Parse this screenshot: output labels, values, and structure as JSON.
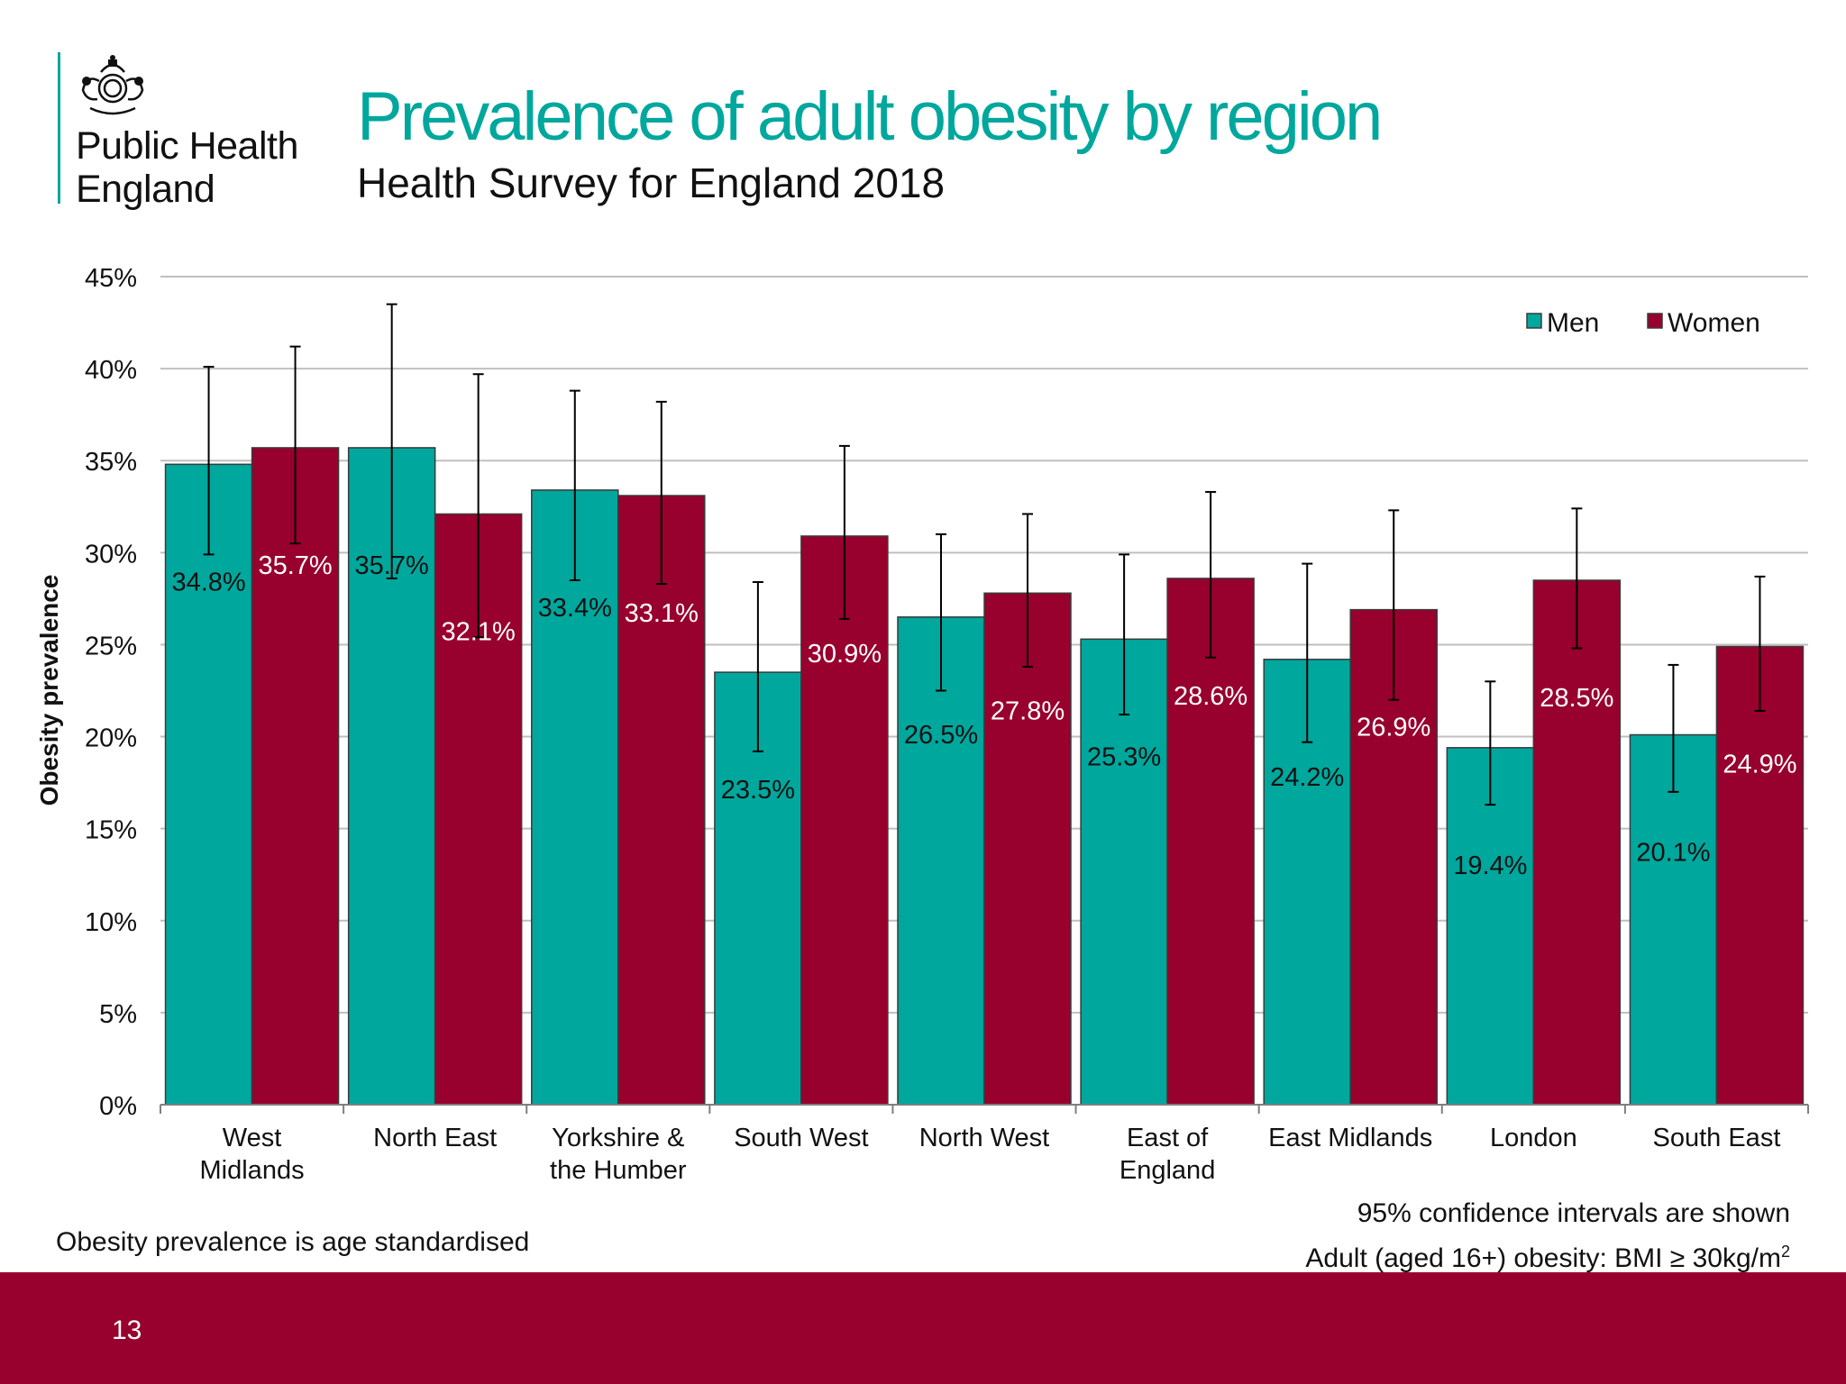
{
  "logo": {
    "line1": "Public Health",
    "line2": "England"
  },
  "title": "Prevalence of adult obesity by region",
  "subtitle": "Health Survey for England 2018",
  "footnotes": {
    "left": "Obesity prevalence is age standardised",
    "ci": "95% confidence intervals are shown",
    "bmi": "Adult (aged 16+) obesity: BMI ≥ 30kg/m",
    "bmi_sup": "2"
  },
  "page_number": "13",
  "colors": {
    "men": "#00a79d",
    "women": "#98002e",
    "accent": "#00a79d",
    "footer": "#98002e"
  },
  "chart_data": {
    "type": "bar",
    "ylabel": "Obesity prevalence",
    "xlabel": "",
    "ylim": [
      0,
      45
    ],
    "yticks": [
      "0%",
      "5%",
      "10%",
      "15%",
      "20%",
      "25%",
      "30%",
      "35%",
      "40%",
      "45%"
    ],
    "grid": true,
    "legend_position": "top-right",
    "categories": [
      [
        "West",
        "Midlands"
      ],
      [
        "North East"
      ],
      [
        "Yorkshire &",
        "the Humber"
      ],
      [
        "South West"
      ],
      [
        "North West"
      ],
      [
        "East of",
        "England"
      ],
      [
        "East Midlands"
      ],
      [
        "London"
      ],
      [
        "South East"
      ]
    ],
    "series": [
      {
        "name": "Men",
        "values": [
          34.8,
          35.7,
          33.4,
          23.5,
          26.5,
          25.3,
          24.2,
          19.4,
          20.1
        ],
        "labels": [
          "34.8%",
          "35.7%",
          "33.4%",
          "23.5%",
          "26.5%",
          "25.3%",
          "24.2%",
          "19.4%",
          "20.1%"
        ],
        "ci_low": [
          29.9,
          28.6,
          28.5,
          19.2,
          22.5,
          21.2,
          19.7,
          16.3,
          17.0
        ],
        "ci_high": [
          40.1,
          43.5,
          38.8,
          28.4,
          31.0,
          29.9,
          29.4,
          23.0,
          23.9
        ]
      },
      {
        "name": "Women",
        "values": [
          35.7,
          32.1,
          33.1,
          30.9,
          27.8,
          28.6,
          26.9,
          28.5,
          24.9
        ],
        "labels": [
          "35.7%",
          "32.1%",
          "33.1%",
          "30.9%",
          "27.8%",
          "28.6%",
          "26.9%",
          "28.5%",
          "24.9%"
        ],
        "ci_low": [
          30.5,
          25.4,
          28.3,
          26.4,
          23.8,
          24.3,
          22.0,
          24.8,
          21.4
        ],
        "ci_high": [
          41.2,
          39.7,
          38.2,
          35.8,
          32.1,
          33.3,
          32.3,
          32.4,
          28.7
        ]
      }
    ]
  }
}
